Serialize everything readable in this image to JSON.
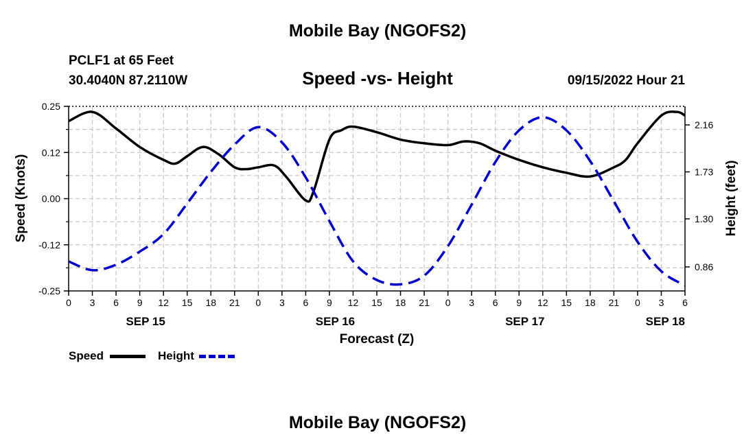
{
  "top_title": "Mobile Bay (NGOFS2)",
  "bottom_title": "Mobile Bay (NGOFS2)",
  "station_line1": "PCLF1 at 65 Feet",
  "station_line2": "30.4040N  87.2110W",
  "timestamp": "09/15/2022 Hour 21",
  "colors": {
    "speed": "#000000",
    "height": "#0000cc",
    "grid": "#c8c8c8"
  },
  "chart_data": {
    "type": "line",
    "title": "Speed -vs- Height",
    "xlabel": "Forecast (Z)",
    "ylabel": "Speed (Knots)",
    "y2label": "Height (feet)",
    "x_range_hours": [
      0,
      78
    ],
    "ylim": [
      -0.25,
      0.25
    ],
    "y2lim": [
      0.64,
      2.33
    ],
    "y_ticks": [
      "0.25",
      "0.12",
      "0.00",
      "-0.12",
      "-0.25"
    ],
    "y2_ticks": [
      "2.16",
      "1.73",
      "1.30",
      "0.86"
    ],
    "x_tick_labels": [
      "0",
      "3",
      "6",
      "9",
      "12",
      "15",
      "18",
      "21",
      "0",
      "3",
      "6",
      "9",
      "12",
      "15",
      "18",
      "21",
      "0",
      "3",
      "6",
      "9",
      "12",
      "15",
      "18",
      "21",
      "0",
      "3",
      "6"
    ],
    "date_labels": [
      "SEP 15",
      "SEP 16",
      "SEP 17",
      "SEP 18"
    ],
    "grid": true,
    "series": [
      {
        "name": "Speed",
        "axis": "left",
        "style": "solid",
        "x": [
          0,
          3,
          6,
          9,
          12,
          13.5,
          15,
          17,
          19,
          21,
          22.5,
          24,
          26,
          27.5,
          30,
          31,
          33,
          34.5,
          36,
          39,
          42,
          45,
          48,
          50,
          52,
          54,
          57,
          60,
          63,
          66,
          69,
          70.5,
          72,
          75,
          77,
          78
        ],
        "y": [
          0.21,
          0.235,
          0.19,
          0.14,
          0.105,
          0.095,
          0.115,
          0.14,
          0.12,
          0.085,
          0.08,
          0.085,
          0.09,
          0.06,
          -0.005,
          0.02,
          0.16,
          0.185,
          0.195,
          0.18,
          0.16,
          0.15,
          0.145,
          0.155,
          0.15,
          0.13,
          0.105,
          0.085,
          0.07,
          0.06,
          0.085,
          0.105,
          0.15,
          0.225,
          0.235,
          0.225
        ]
      },
      {
        "name": "Height",
        "axis": "right",
        "style": "dashed",
        "x": [
          0,
          3,
          6,
          9,
          12,
          15,
          18,
          21,
          24,
          27,
          30,
          33,
          36,
          39,
          42,
          45,
          48,
          51,
          54,
          57,
          60,
          63,
          66,
          69,
          72,
          75,
          78
        ],
        "y": [
          0.91,
          0.83,
          0.88,
          1.0,
          1.16,
          1.44,
          1.73,
          1.98,
          2.14,
          2.0,
          1.68,
          1.28,
          0.91,
          0.74,
          0.7,
          0.78,
          1.05,
          1.43,
          1.82,
          2.11,
          2.23,
          2.11,
          1.83,
          1.46,
          1.09,
          0.82,
          0.69
        ]
      }
    ]
  }
}
